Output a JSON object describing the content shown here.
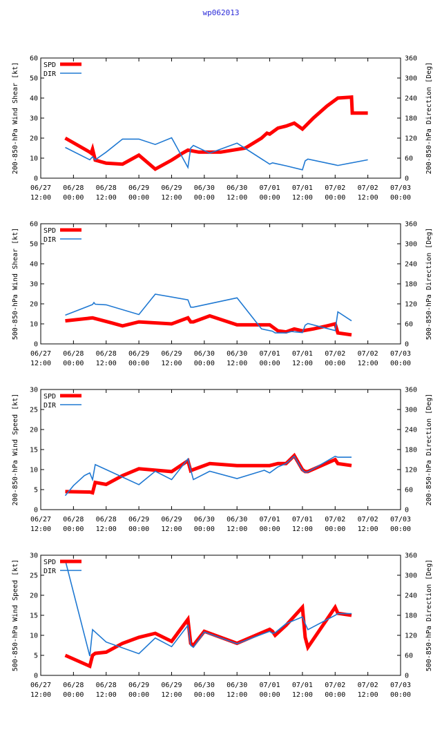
{
  "title": "wp062013",
  "colors": {
    "spd": "#ff0000",
    "dir": "#1e78d2",
    "frame": "#000000",
    "title": "#2a2ad8"
  },
  "legend": {
    "spd_label": "SPD",
    "dir_label": "DIR"
  },
  "x_ticks": [
    {
      "date": "06/27",
      "time": "12:00"
    },
    {
      "date": "06/28",
      "time": "00:00"
    },
    {
      "date": "06/28",
      "time": "12:00"
    },
    {
      "date": "06/29",
      "time": "00:00"
    },
    {
      "date": "06/29",
      "time": "12:00"
    },
    {
      "date": "06/30",
      "time": "00:00"
    },
    {
      "date": "06/30",
      "time": "12:00"
    },
    {
      "date": "07/01",
      "time": "00:00"
    },
    {
      "date": "07/01",
      "time": "12:00"
    },
    {
      "date": "07/02",
      "time": "00:00"
    },
    {
      "date": "07/02",
      "time": "12:00"
    },
    {
      "date": "07/03",
      "time": "00:00"
    }
  ],
  "y2_ticks": [
    "0",
    "60",
    "120",
    "180",
    "240",
    "300",
    "360"
  ],
  "chart_data": [
    {
      "type": "line",
      "ylabel": "200-850-hPa Wind Shear [kt]",
      "y2label": "200-850-hPa Direction [Deg]",
      "xlim": [
        0,
        132
      ],
      "ylim": [
        0,
        60
      ],
      "y2lim": [
        0,
        360
      ],
      "y_ticks": [
        "0",
        "10",
        "20",
        "30",
        "40",
        "50",
        "60"
      ],
      "series": [
        {
          "name": "SPD",
          "axis": "left",
          "x": [
            9,
            18,
            18.5,
            19,
            20,
            24,
            30,
            36,
            42,
            48,
            52,
            54,
            58,
            66,
            75,
            81,
            83,
            84,
            87,
            90,
            93,
            96,
            100,
            105,
            109,
            114,
            114.3,
            120
          ],
          "y": [
            20,
            13,
            12.5,
            14.5,
            9,
            7.5,
            7,
            11.5,
            4.5,
            9,
            12.5,
            14,
            13,
            13,
            15,
            20,
            22.5,
            22,
            25,
            26,
            27.5,
            24.5,
            30,
            36,
            40,
            40.5,
            32.5,
            32.5
          ]
        },
        {
          "name": "DIR",
          "axis": "right",
          "x": [
            9,
            18,
            19,
            20,
            24,
            30,
            36,
            42,
            48,
            54,
            55,
            56,
            62,
            72,
            84,
            85,
            86,
            90,
            96,
            97,
            98,
            108,
            109,
            120
          ],
          "y": [
            92,
            55,
            64,
            55,
            78,
            117,
            117,
            101,
            121,
            32,
            90,
            98,
            75,
            105,
            42,
            46,
            44,
            37,
            25,
            52,
            57,
            40,
            38,
            55
          ]
        }
      ]
    },
    {
      "type": "line",
      "ylabel": "500-850-hPa Wind Shear [kt]",
      "y2label": "500-850-hPa Direction [Deg]",
      "xlim": [
        0,
        132
      ],
      "ylim": [
        0,
        60
      ],
      "y2lim": [
        0,
        360
      ],
      "y_ticks": [
        "0",
        "10",
        "20",
        "30",
        "40",
        "50",
        "60"
      ],
      "series": [
        {
          "name": "SPD",
          "axis": "left",
          "x": [
            9,
            19,
            26,
            30,
            36,
            48,
            54,
            55,
            56,
            62,
            72,
            84,
            87,
            90,
            93,
            96,
            100,
            105,
            108,
            109,
            114
          ],
          "y": [
            11.5,
            13,
            10.5,
            9,
            11,
            10,
            13,
            11,
            11,
            14,
            9.5,
            9.5,
            6.5,
            6,
            7.5,
            6.5,
            7.5,
            9,
            10,
            5.5,
            4.5
          ]
        },
        {
          "name": "DIR",
          "axis": "right",
          "x": [
            9,
            19,
            19.5,
            20,
            24,
            36,
            42,
            54,
            55,
            56,
            72,
            81,
            85,
            86,
            90,
            92,
            96,
            97,
            98,
            108,
            109,
            114
          ],
          "y": [
            86,
            118,
            124,
            119,
            117,
            88,
            149,
            132,
            110,
            110,
            138,
            45,
            38,
            33,
            33,
            37,
            34,
            56,
            61,
            40,
            96,
            69
          ]
        }
      ]
    },
    {
      "type": "line",
      "ylabel": "200-850-hPa Wind Speed [kt]",
      "y2label": "200-850-hPa Direction [Deg]",
      "xlim": [
        0,
        132
      ],
      "ylim": [
        0,
        30
      ],
      "y2lim": [
        0,
        360
      ],
      "y_ticks": [
        "0",
        "5",
        "10",
        "15",
        "20",
        "25",
        "30"
      ],
      "series": [
        {
          "name": "SPD",
          "axis": "left",
          "x": [
            9,
            18,
            19,
            20,
            24,
            30,
            36,
            48,
            54,
            55,
            56,
            62,
            72,
            84,
            87,
            90,
            93,
            96,
            97,
            98,
            108,
            109,
            114
          ],
          "y": [
            4.5,
            4.4,
            4.2,
            6.8,
            6.3,
            8.5,
            10.2,
            9.5,
            12.2,
            9.7,
            10.0,
            11.5,
            11.0,
            11.0,
            11.5,
            11.5,
            13.5,
            10.0,
            9.5,
            9.5,
            12.5,
            11.5,
            11.0
          ]
        },
        {
          "name": "DIR",
          "axis": "right",
          "x": [
            9,
            12,
            16,
            18,
            19,
            20,
            24,
            36,
            42,
            48,
            54,
            55,
            56,
            62,
            72,
            82,
            84,
            87,
            90,
            93,
            96,
            97,
            98,
            108,
            109,
            114
          ],
          "y": [
            42,
            72,
            102,
            110,
            90,
            135,
            120,
            75,
            115,
            90,
            152,
            120,
            90,
            115,
            93,
            118,
            110,
            128,
            138,
            160,
            118,
            112,
            113,
            160,
            157,
            157
          ]
        }
      ]
    },
    {
      "type": "line",
      "ylabel": "500-850-hPa Wind Speed [kt]",
      "y2label": "500-850-hPa Direction [Deg]",
      "xlim": [
        0,
        132
      ],
      "ylim": [
        0,
        30
      ],
      "y2lim": [
        0,
        360
      ],
      "y_ticks": [
        "0",
        "5",
        "10",
        "15",
        "20",
        "25",
        "30"
      ],
      "series": [
        {
          "name": "SPD",
          "axis": "left",
          "x": [
            9,
            18,
            19,
            20,
            24,
            30,
            36,
            42,
            48,
            54,
            55,
            56,
            60,
            72,
            84,
            85,
            86,
            90,
            96,
            97,
            98,
            108,
            109,
            114
          ],
          "y": [
            5,
            2.3,
            5,
            5.5,
            5.8,
            8,
            9.5,
            10.5,
            8.5,
            14,
            8,
            7.5,
            11,
            8,
            11.5,
            11,
            10,
            12.5,
            17,
            9.5,
            7,
            17,
            15.5,
            15
          ]
        },
        {
          "name": "DIR",
          "axis": "right",
          "x": [
            9,
            18,
            19,
            24,
            36,
            42,
            48,
            54,
            55,
            56,
            60,
            72,
            84,
            85,
            86,
            90,
            96,
            97,
            98,
            108,
            109,
            114
          ],
          "y": [
            345,
            58,
            137,
            100,
            65,
            112,
            86,
            150,
            90,
            84,
            130,
            95,
            132,
            126,
            128,
            155,
            175,
            155,
            137,
            180,
            185,
            185
          ]
        }
      ]
    }
  ]
}
